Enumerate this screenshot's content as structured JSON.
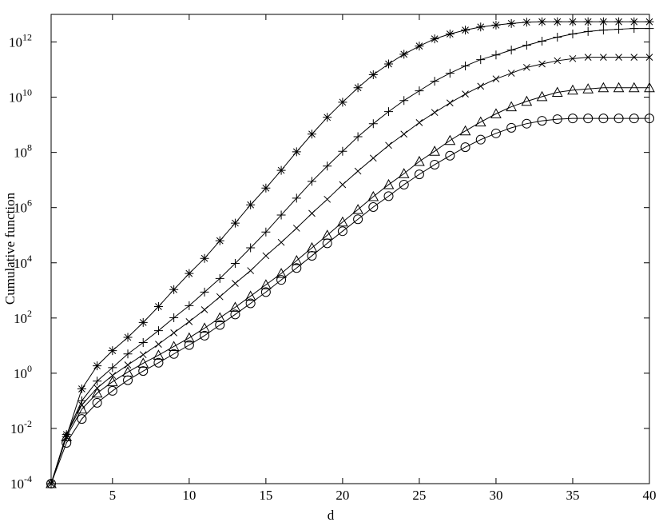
{
  "chart_data": {
    "type": "line",
    "x_label": "d",
    "y_label": "Cumulative function",
    "x": [
      1,
      2,
      3,
      4,
      5,
      6,
      7,
      8,
      9,
      10,
      11,
      12,
      13,
      14,
      15,
      16,
      17,
      18,
      19,
      20,
      21,
      22,
      23,
      24,
      25,
      26,
      27,
      28,
      29,
      30,
      31,
      32,
      33,
      34,
      35,
      36,
      37,
      38,
      39,
      40
    ],
    "xlim": [
      1,
      40
    ],
    "xticks": [
      5,
      10,
      15,
      20,
      25,
      30,
      35,
      40
    ],
    "yscale": "log",
    "ylim": [
      0.0001,
      10000000000000.0
    ],
    "yticks": [
      {
        "value": 0.0001,
        "label": "10",
        "exponent": "-4"
      },
      {
        "value": 0.01,
        "label": "10",
        "exponent": "-2"
      },
      {
        "value": 1,
        "label": "10",
        "exponent": "0"
      },
      {
        "value": 100,
        "label": "10",
        "exponent": "2"
      },
      {
        "value": 10000,
        "label": "10",
        "exponent": "4"
      },
      {
        "value": 1000000,
        "label": "10",
        "exponent": "6"
      },
      {
        "value": 100000000,
        "label": "10",
        "exponent": "8"
      },
      {
        "value": 10000000000,
        "label": "10",
        "exponent": "10"
      },
      {
        "value": 1000000000000,
        "label": "10",
        "exponent": "12"
      }
    ],
    "grid": false,
    "series": [
      {
        "color": "#000000",
        "marker": "asterisk",
        "values": [
          0.0001,
          0.005,
          0.27,
          1.86,
          6.6,
          20,
          69,
          260,
          1070,
          4100,
          14500,
          63000,
          275000,
          1260000,
          5100000,
          22400000,
          105000000,
          460000000,
          1860000000,
          6600000000,
          22000000000,
          65000000000,
          160000000000,
          360000000000,
          710000000000,
          1300000000000,
          1950000000000,
          2700000000000,
          3500000000000,
          4100000000000,
          4700000000000,
          5200000000000,
          5400000000000,
          5400000000000,
          5400000000000,
          5400000000000,
          5400000000000,
          5400000000000,
          5400000000000,
          5400000000000
        ]
      },
      {
        "color": "#000000",
        "marker": "plus",
        "values": [
          0.0001,
          0.006,
          0.1,
          0.52,
          1.6,
          5.0,
          12.9,
          35,
          102,
          280,
          870,
          2700,
          9500,
          35000,
          130000,
          540000,
          2200000,
          8900000,
          32000000,
          110000000,
          370000000,
          1100000000,
          3000000000,
          7600000000,
          17000000000,
          38000000000,
          74000000000,
          135000000000,
          230000000000,
          340000000000,
          510000000000,
          760000000000,
          1070000000000,
          1500000000000,
          1950000000000,
          2400000000000,
          2700000000000,
          2900000000000,
          3100000000000,
          3100000000000
        ]
      },
      {
        "color": "#000000",
        "marker": "x",
        "values": [
          0.0001,
          0.006,
          0.071,
          0.29,
          0.83,
          2.0,
          4.7,
          11.2,
          29,
          74,
          200,
          590,
          1800,
          5200,
          18000,
          55000,
          180000,
          620000,
          2000000,
          6800000,
          21000000,
          62000000,
          180000000,
          460000000,
          1200000000,
          2800000000,
          6200000000,
          13000000000,
          25000000000,
          46000000000,
          74000000000,
          120000000000,
          160000000000,
          210000000000,
          250000000000,
          280000000000,
          280000000000,
          280000000000,
          280000000000,
          280000000000
        ]
      },
      {
        "color": "#000000",
        "marker": "triangle",
        "values": [
          0.0001,
          0.005,
          0.05,
          0.19,
          0.49,
          1.1,
          2.3,
          4.5,
          9.3,
          19,
          43,
          102,
          245,
          620,
          1600,
          4100,
          12000,
          35000,
          100000,
          300000,
          850000,
          2500000,
          6800000,
          17000000,
          47000000,
          110000000,
          270000000,
          600000000,
          1260000000,
          2500000000,
          4500000000,
          7100000000,
          10500000000,
          15000000000,
          18000000000,
          20000000000,
          22000000000,
          22000000000,
          22000000000,
          22000000000
        ]
      },
      {
        "color": "#000000",
        "marker": "circle",
        "values": [
          0.0001,
          0.003,
          0.022,
          0.085,
          0.23,
          0.56,
          1.2,
          2.4,
          5.0,
          10.5,
          23,
          56,
          135,
          340,
          870,
          2400,
          6500,
          18000,
          51000,
          140000,
          380000,
          1050000,
          2600000,
          6800000,
          16000000,
          36000000,
          76000000,
          155000000,
          290000000,
          490000000,
          780000000,
          1100000000,
          1400000000,
          1600000000,
          1700000000,
          1700000000,
          1700000000,
          1700000000,
          1700000000,
          1700000000
        ]
      }
    ]
  }
}
